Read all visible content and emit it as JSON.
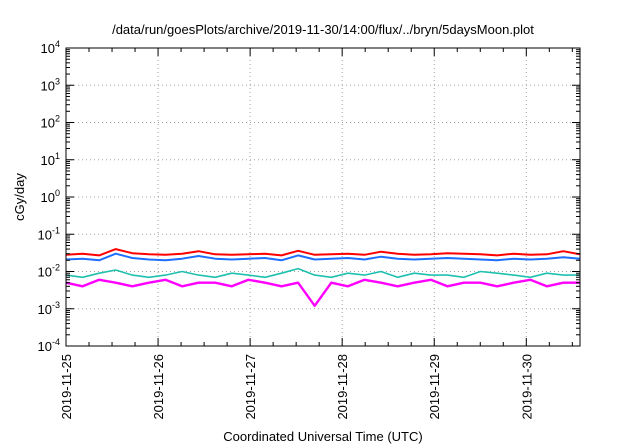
{
  "chart_data": {
    "type": "line",
    "title": "/data/run/goesPlots/archive/2019-11-30/14:00/flux/../bryn/5daysMoon.plot",
    "xlabel": "Coordinated Universal Time (UTC)",
    "ylabel": "cGy/day",
    "x_tick_labels": [
      "2019-11-25",
      "2019-11-26",
      "2019-11-27",
      "2019-11-28",
      "2019-11-29",
      "2019-11-30"
    ],
    "x_range": [
      "2019-11-25",
      "2019-11-30T14:00"
    ],
    "y_scale": "log",
    "y_tick_labels": [
      {
        "base": "10",
        "exp": "4"
      },
      {
        "base": "10",
        "exp": "3"
      },
      {
        "base": "10",
        "exp": "2"
      },
      {
        "base": "10",
        "exp": "1"
      },
      {
        "base": "10",
        "exp": "0"
      },
      {
        "base": "10",
        "exp": "-1"
      },
      {
        "base": "10",
        "exp": "-2"
      },
      {
        "base": "10",
        "exp": "-3"
      },
      {
        "base": "10",
        "exp": "-4"
      }
    ],
    "ylim": [
      0.0001,
      10000
    ],
    "grid": true,
    "legend": "none",
    "series": [
      {
        "color": "#ff0000",
        "values": [
          0.028,
          0.03,
          0.027,
          0.04,
          0.031,
          0.029,
          0.028,
          0.03,
          0.035,
          0.029,
          0.028,
          0.029,
          0.03,
          0.027,
          0.036,
          0.028,
          0.029,
          0.03,
          0.028,
          0.034,
          0.03,
          0.028,
          0.029,
          0.031,
          0.03,
          0.029,
          0.027,
          0.03,
          0.028,
          0.029,
          0.035,
          0.029
        ]
      },
      {
        "color": "#1f6fff",
        "values": [
          0.021,
          0.022,
          0.02,
          0.03,
          0.023,
          0.021,
          0.02,
          0.022,
          0.026,
          0.022,
          0.021,
          0.022,
          0.023,
          0.02,
          0.027,
          0.021,
          0.022,
          0.023,
          0.021,
          0.025,
          0.022,
          0.021,
          0.022,
          0.023,
          0.022,
          0.021,
          0.02,
          0.022,
          0.021,
          0.022,
          0.024,
          0.022
        ]
      },
      {
        "color": "#20c0b0",
        "values": [
          0.008,
          0.007,
          0.009,
          0.011,
          0.008,
          0.007,
          0.008,
          0.01,
          0.008,
          0.007,
          0.009,
          0.008,
          0.007,
          0.009,
          0.012,
          0.008,
          0.007,
          0.009,
          0.008,
          0.01,
          0.007,
          0.009,
          0.008,
          0.008,
          0.007,
          0.01,
          0.009,
          0.008,
          0.007,
          0.009,
          0.008,
          0.008
        ]
      },
      {
        "color": "#ff00ff",
        "values": [
          0.005,
          0.004,
          0.006,
          0.005,
          0.004,
          0.005,
          0.006,
          0.004,
          0.005,
          0.005,
          0.004,
          0.006,
          0.005,
          0.004,
          0.005,
          0.0012,
          0.005,
          0.004,
          0.006,
          0.005,
          0.004,
          0.005,
          0.006,
          0.004,
          0.005,
          0.005,
          0.004,
          0.005,
          0.006,
          0.004,
          0.005,
          0.005
        ]
      }
    ]
  }
}
